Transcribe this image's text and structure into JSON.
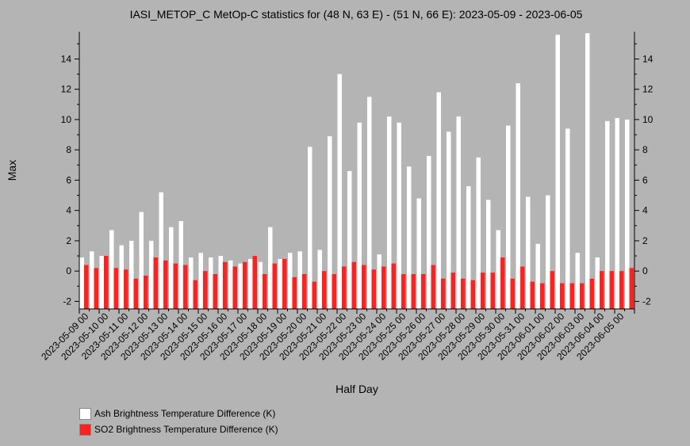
{
  "chart_data": {
    "type": "bar",
    "title": "IASI_METOP_C MetOp-C statistics for (48 N, 63 E) - (51 N, 66 E): 2023-05-09 - 2023-06-05",
    "xlabel": "Half Day",
    "ylabel": "Max",
    "ylim": [
      -2.5,
      15.8
    ],
    "yticks": [
      -2,
      0,
      2,
      4,
      6,
      8,
      10,
      12,
      14
    ],
    "x_tick_labels": [
      "2023-05-09 00",
      "2023-05-10 00",
      "2023-05-11 00",
      "2023-05-12 00",
      "2023-05-13 00",
      "2023-05-14 00",
      "2023-05-15 00",
      "2023-05-16 00",
      "2023-05-17 00",
      "2023-05-18 00",
      "2023-05-19 00",
      "2023-05-20 00",
      "2023-05-21 00",
      "2023-05-22 00",
      "2023-05-23 00",
      "2023-05-24 00",
      "2023-05-25 00",
      "2023-05-26 00",
      "2023-05-27 00",
      "2023-05-28 00",
      "2023-05-29 00",
      "2023-05-30 00",
      "2023-05-31 00",
      "2023-06-01 00",
      "2023-06-02 00",
      "2023-06-03 00",
      "2023-06-04 00",
      "2023-06-05 00"
    ],
    "grid": false,
    "legend_position": "bottom-left",
    "series": [
      {
        "name": "Ash Brightness Temperature Difference (K)",
        "color": "#ffffff",
        "values": [
          0.9,
          1.3,
          1.0,
          2.7,
          1.7,
          2.0,
          3.9,
          2.0,
          5.2,
          2.9,
          3.3,
          0.9,
          1.2,
          0.9,
          1.0,
          0.7,
          0.5,
          0.8,
          0.6,
          2.9,
          0.8,
          1.2,
          1.3,
          8.2,
          1.4,
          8.9,
          13.0,
          6.6,
          9.8,
          11.5,
          1.1,
          10.2,
          9.8,
          6.9,
          4.8,
          7.6,
          11.8,
          9.2,
          10.2,
          5.6,
          7.5,
          4.7,
          2.7,
          9.6,
          12.4,
          4.9,
          1.8,
          5.0,
          15.6,
          9.4,
          1.2,
          15.7,
          0.9,
          9.9,
          10.1,
          10.0
        ]
      },
      {
        "name": "SO2 Brightness Temperature Difference (K)",
        "color": "#ff2020",
        "values": [
          0.4,
          0.2,
          1.0,
          0.2,
          0.1,
          -0.5,
          -0.3,
          0.9,
          0.7,
          0.5,
          0.4,
          -0.6,
          0.0,
          -0.2,
          0.6,
          0.3,
          0.6,
          1.0,
          -0.2,
          0.5,
          0.8,
          -0.4,
          -0.2,
          -0.7,
          0.0,
          -0.2,
          0.3,
          0.6,
          0.4,
          0.1,
          0.3,
          0.5,
          -0.2,
          -0.2,
          -0.2,
          0.4,
          -0.5,
          -0.1,
          -0.5,
          -0.6,
          -0.1,
          -0.1,
          0.9,
          -0.5,
          0.3,
          -0.7,
          -0.8,
          0.0,
          -0.8,
          -0.8,
          -0.8,
          -0.5,
          0.0,
          0.0,
          0.0,
          0.2
        ]
      }
    ]
  }
}
